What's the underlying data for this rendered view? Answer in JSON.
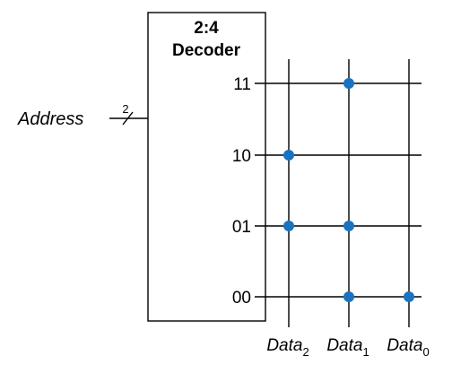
{
  "decoder": {
    "title_line1": "2:4",
    "title_line2": "Decoder"
  },
  "address": {
    "label": "Address",
    "bus_width": "2"
  },
  "rows": [
    {
      "label": "11",
      "bits": [
        0,
        1,
        0
      ]
    },
    {
      "label": "10",
      "bits": [
        1,
        0,
        0
      ]
    },
    {
      "label": "01",
      "bits": [
        1,
        1,
        0
      ]
    },
    {
      "label": "00",
      "bits": [
        0,
        1,
        1
      ]
    }
  ],
  "columns": [
    {
      "base": "Data",
      "sub": "2"
    },
    {
      "base": "Data",
      "sub": "1"
    },
    {
      "base": "Data",
      "sub": "0"
    }
  ],
  "colors": {
    "dot": "#1a73c0",
    "line": "#000000"
  }
}
